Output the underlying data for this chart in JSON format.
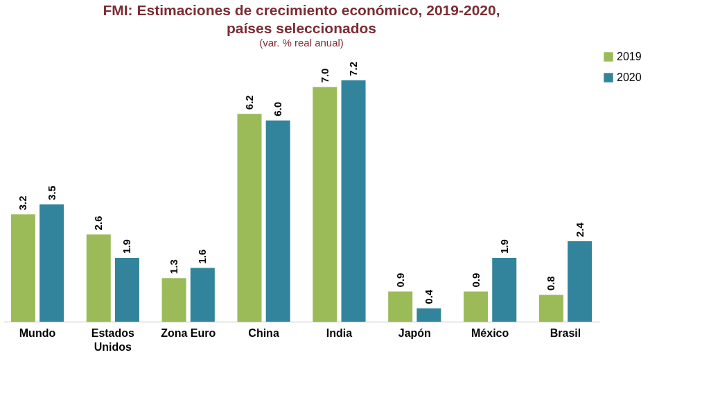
{
  "chart_data": {
    "type": "bar",
    "title": "FMI: Estimaciones de crecimiento económico, 2019-2020, países seleccionados",
    "subtitle": "(var. % real anual)",
    "categories": [
      "Mundo",
      "Estados Unidos",
      "Zona Euro",
      "China",
      "India",
      "Japón",
      "México",
      "Brasil"
    ],
    "series": [
      {
        "name": "2019",
        "color": "#9bbb59",
        "values": [
          3.2,
          2.6,
          1.3,
          6.2,
          7.0,
          0.9,
          0.9,
          0.8
        ],
        "value_labels": [
          "3.2",
          "2.6",
          "1.3",
          "6.2",
          "7.0",
          "0.9",
          "0.9",
          "0.8"
        ]
      },
      {
        "name": "2020",
        "color": "#31849b",
        "values": [
          3.5,
          1.9,
          1.6,
          6.0,
          7.2,
          0.4,
          1.9,
          2.4
        ],
        "value_labels": [
          "3.5",
          "1.9",
          "1.6",
          "6.0",
          "7.2",
          "0.4",
          "1.9",
          "2.4"
        ]
      }
    ],
    "legend": "right",
    "grid": false
  }
}
